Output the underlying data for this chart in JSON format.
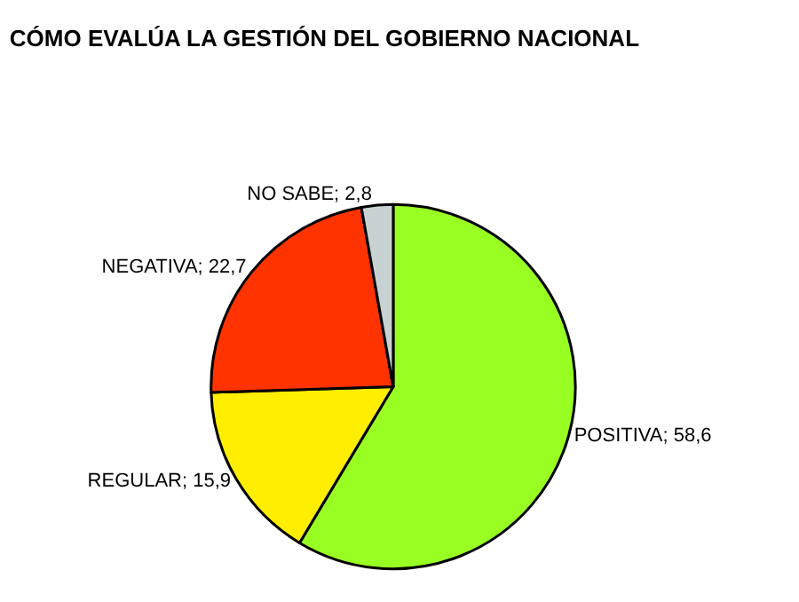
{
  "chart_data": {
    "type": "pie",
    "title": "CÓMO EVALÚA LA GESTIÓN DEL GOBIERNO NACIONAL",
    "categories": [
      "POSITIVA",
      "REGULAR",
      "NEGATIVA",
      "NO SABE"
    ],
    "values": [
      58.6,
      15.9,
      22.7,
      2.8
    ],
    "value_labels": [
      "58,6",
      "15,9",
      "22,7",
      "2,8"
    ],
    "colors": [
      "#99ff22",
      "#ffee00",
      "#ff3300",
      "#c8d2d2"
    ],
    "legend": false
  }
}
